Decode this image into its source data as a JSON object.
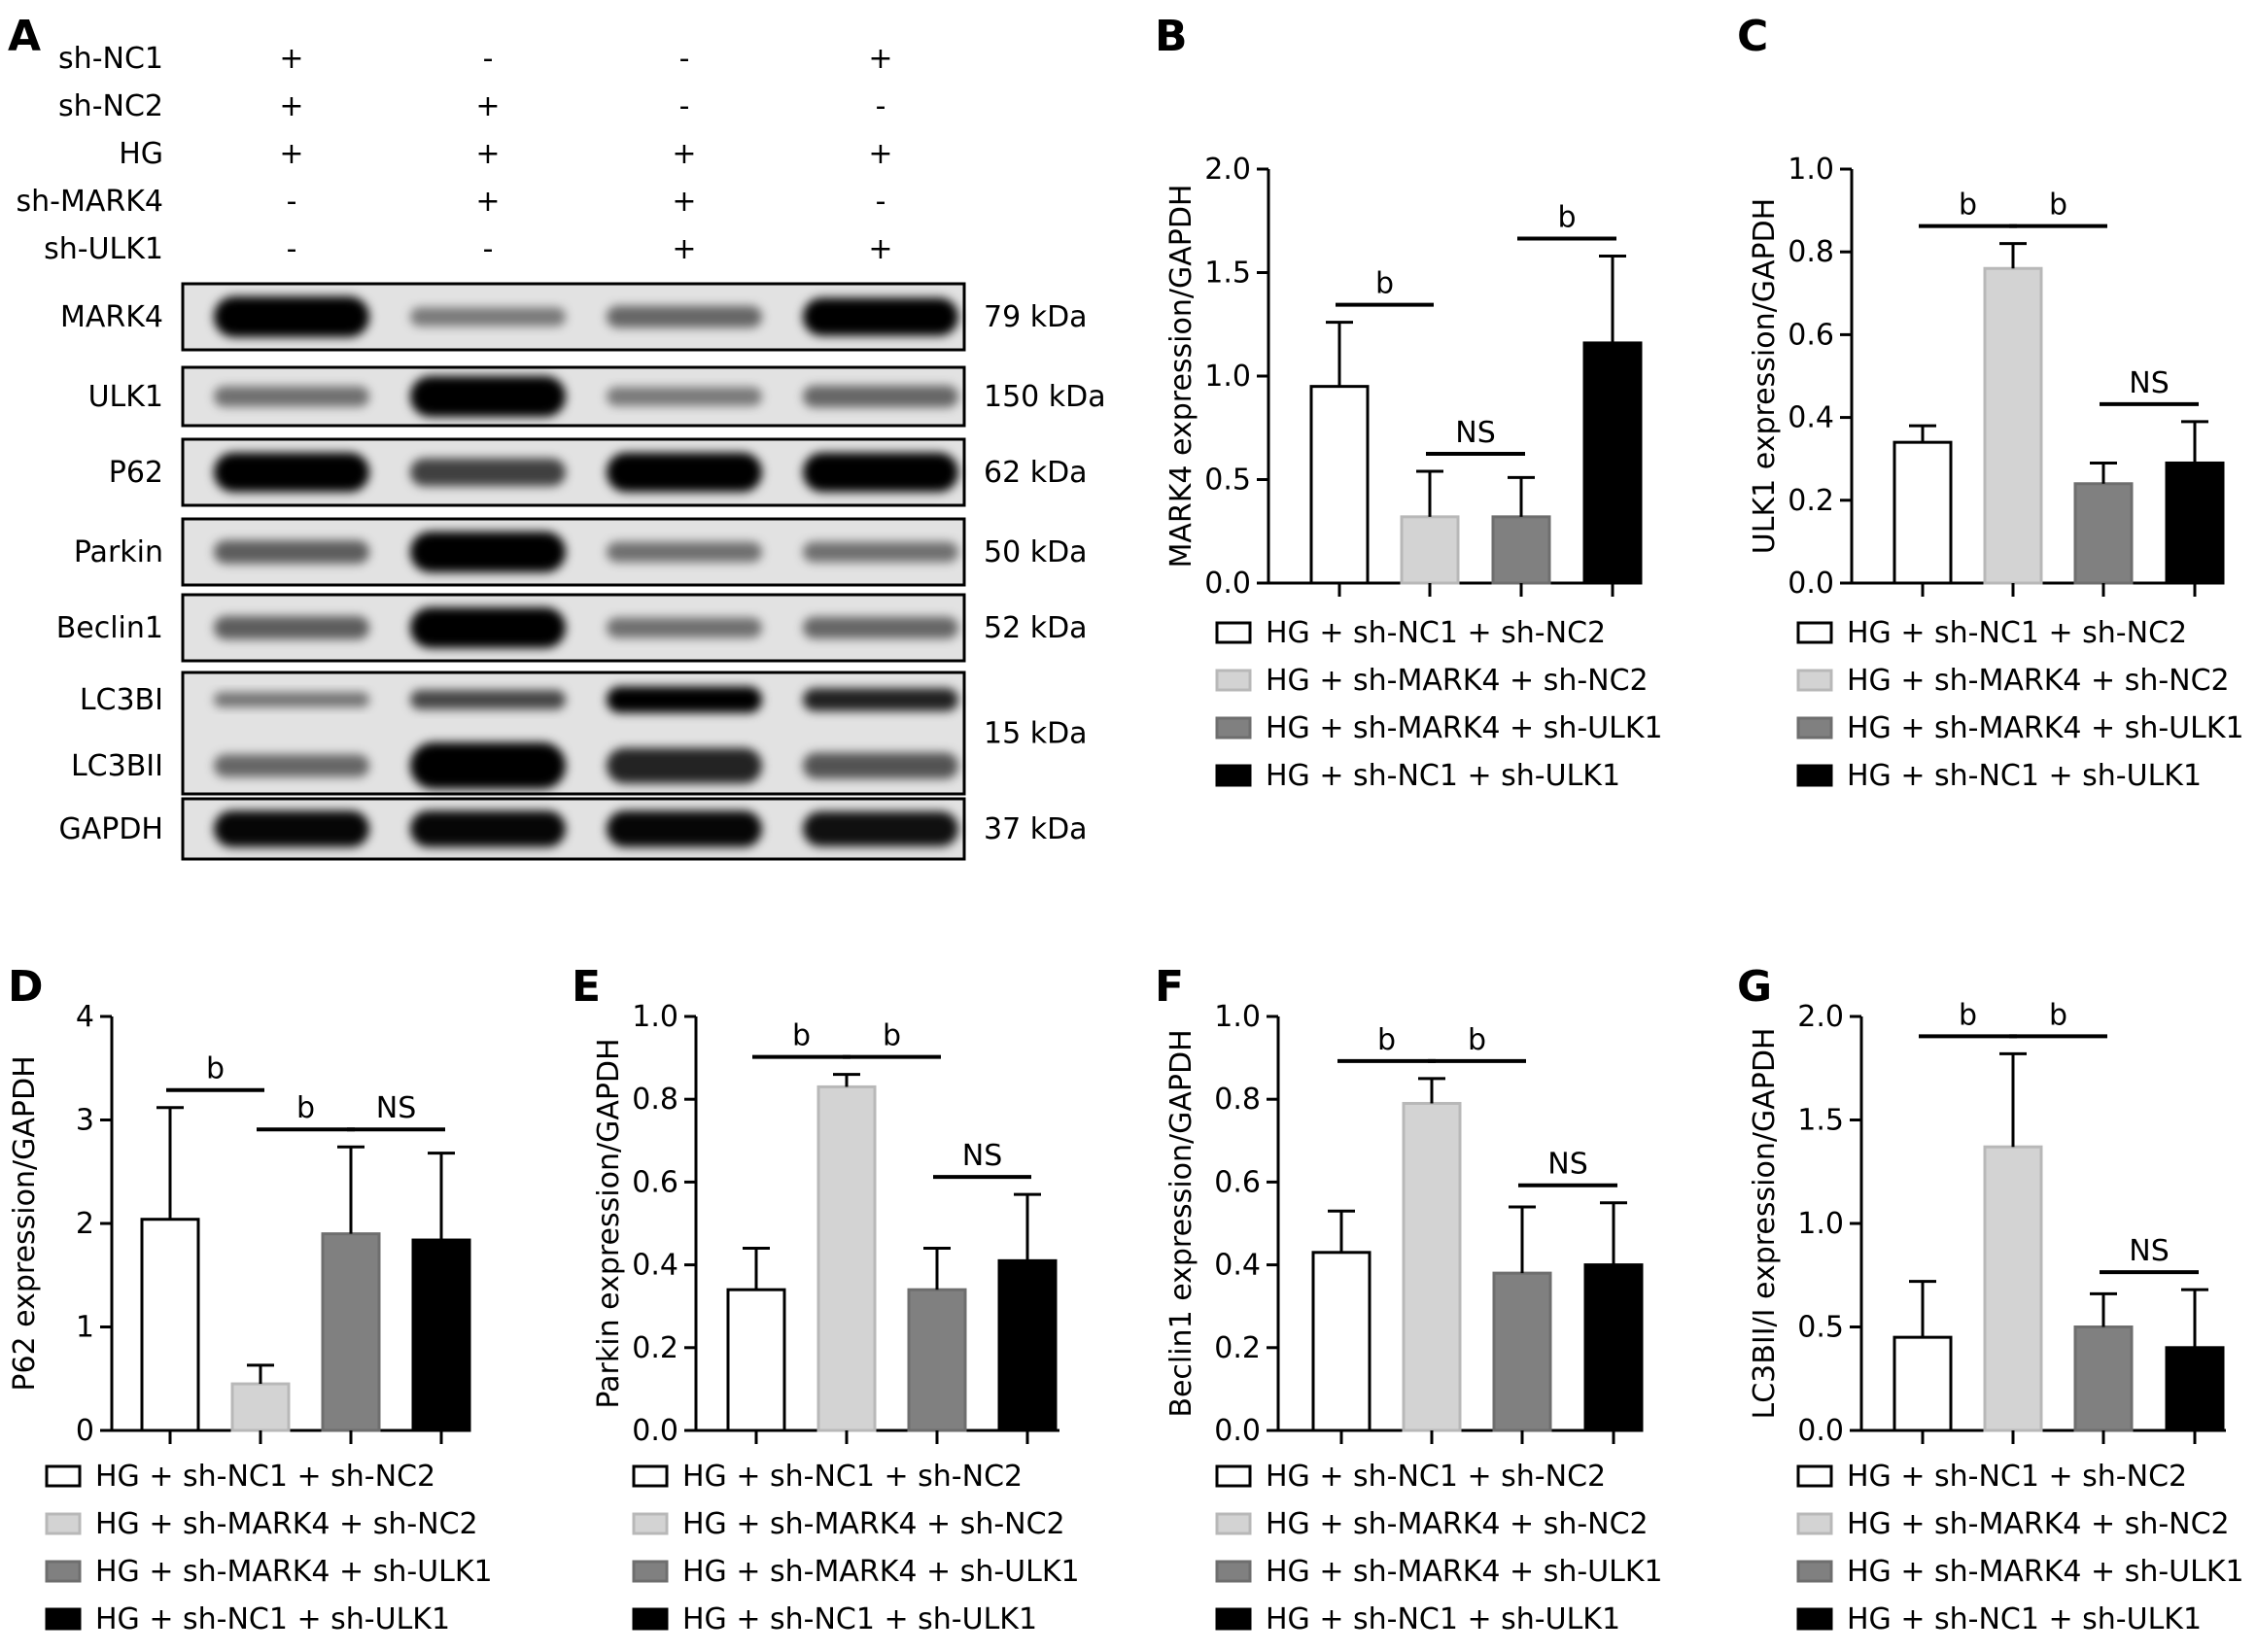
{
  "panel_a": {
    "letter": "A",
    "conditions": [
      {
        "label": "sh-NC1",
        "signs": [
          "+",
          "-",
          "-",
          "+"
        ]
      },
      {
        "label": "sh-NC2",
        "signs": [
          "+",
          "+",
          "-",
          "-"
        ]
      },
      {
        "label": "HG",
        "signs": [
          "+",
          "+",
          "+",
          "+"
        ]
      },
      {
        "label": "sh-MARK4",
        "signs": [
          "-",
          "+",
          "+",
          "-"
        ]
      },
      {
        "label": "sh-ULK1",
        "signs": [
          "-",
          "-",
          "+",
          "+"
        ]
      }
    ],
    "blots": [
      {
        "labels": [
          "MARK4"
        ],
        "kda": "79 kDa",
        "intensity": [
          1.0,
          0.25,
          0.35,
          0.9
        ]
      },
      {
        "labels": [
          "ULK1"
        ],
        "kda": "150 kDa",
        "intensity": [
          0.3,
          1.0,
          0.25,
          0.35
        ]
      },
      {
        "labels": [
          "P62"
        ],
        "kda": "62 kDa",
        "intensity": [
          0.95,
          0.55,
          0.95,
          0.95
        ]
      },
      {
        "labels": [
          "Parkin"
        ],
        "kda": "50 kDa",
        "intensity": [
          0.4,
          1.0,
          0.3,
          0.3
        ]
      },
      {
        "labels": [
          "Beclin1"
        ],
        "kda": "52 kDa",
        "intensity": [
          0.4,
          1.0,
          0.3,
          0.35
        ]
      },
      {
        "labels": [
          "LC3BI",
          "LC3BII"
        ],
        "kda": "15 kDa",
        "intensity": [
          0.35,
          1.0,
          0.7,
          0.45
        ]
      },
      {
        "labels": [
          "GAPDH"
        ],
        "kda": "37 kDa",
        "intensity": [
          0.85,
          0.85,
          0.85,
          0.8
        ]
      }
    ]
  },
  "legend_items": [
    "HG + sh-NC1 + sh-NC2",
    "HG + sh-MARK4 + sh-NC2",
    "HG + sh-MARK4 + sh-ULK1",
    "HG + sh-NC1 + sh-ULK1"
  ],
  "colors": {
    "bar_fills": [
      "#ffffff",
      "#d3d3d3",
      "#808080",
      "#000000"
    ],
    "bar_strokes": [
      "#000000",
      "#b8b8b8",
      "#6e6e6e",
      "#000000"
    ]
  },
  "chart_data": [
    {
      "letter": "B",
      "type": "bar",
      "ylabel": "MARK4 expression/GAPDH",
      "ylim": [
        0,
        2.0
      ],
      "yticks": [
        "0.0",
        "0.5",
        "1.0",
        "1.5",
        "2.0"
      ],
      "values": [
        0.95,
        0.32,
        0.32,
        1.16
      ],
      "errors": [
        0.31,
        0.22,
        0.19,
        0.42
      ],
      "annotations": [
        {
          "from": 0,
          "to": 1,
          "text": "b"
        },
        {
          "from": 1,
          "to": 2,
          "text": "NS"
        },
        {
          "from": 2,
          "to": 3,
          "text": "b"
        }
      ]
    },
    {
      "letter": "C",
      "type": "bar",
      "ylabel": "ULK1 expression/GAPDH",
      "ylim": [
        0,
        1.0
      ],
      "yticks": [
        "0.0",
        "0.2",
        "0.4",
        "0.6",
        "0.8",
        "1.0"
      ],
      "values": [
        0.34,
        0.76,
        0.24,
        0.29
      ],
      "errors": [
        0.04,
        0.06,
        0.05,
        0.1
      ],
      "annotations": [
        {
          "from": 0,
          "to": 1,
          "text": "b"
        },
        {
          "from": 1,
          "to": 2,
          "text": "b"
        },
        {
          "from": 2,
          "to": 3,
          "text": "NS"
        }
      ]
    },
    {
      "letter": "D",
      "type": "bar",
      "ylabel": "P62 expression/GAPDH",
      "ylim": [
        0,
        4
      ],
      "yticks": [
        "0",
        "1",
        "2",
        "3",
        "4"
      ],
      "values": [
        2.04,
        0.45,
        1.9,
        1.84
      ],
      "errors": [
        1.08,
        0.18,
        0.84,
        0.84
      ],
      "annotations": [
        {
          "from": 0,
          "to": 1,
          "text": "b"
        },
        {
          "from": 1,
          "to": 2,
          "text": "b"
        },
        {
          "from": 2,
          "to": 3,
          "text": "NS"
        }
      ]
    },
    {
      "letter": "E",
      "type": "bar",
      "ylabel": "Parkin expression/GAPDH",
      "ylim": [
        0,
        1.0
      ],
      "yticks": [
        "0.0",
        "0.2",
        "0.4",
        "0.6",
        "0.8",
        "1.0"
      ],
      "values": [
        0.34,
        0.83,
        0.34,
        0.41
      ],
      "errors": [
        0.1,
        0.03,
        0.1,
        0.16
      ],
      "annotations": [
        {
          "from": 0,
          "to": 1,
          "text": "b"
        },
        {
          "from": 1,
          "to": 2,
          "text": "b"
        },
        {
          "from": 2,
          "to": 3,
          "text": "NS"
        }
      ]
    },
    {
      "letter": "F",
      "type": "bar",
      "ylabel": "Beclin1 expression/GAPDH",
      "ylim": [
        0,
        1.0
      ],
      "yticks": [
        "0.0",
        "0.2",
        "0.4",
        "0.6",
        "0.8",
        "1.0"
      ],
      "values": [
        0.43,
        0.79,
        0.38,
        0.4
      ],
      "errors": [
        0.1,
        0.06,
        0.16,
        0.15
      ],
      "annotations": [
        {
          "from": 0,
          "to": 1,
          "text": "b"
        },
        {
          "from": 1,
          "to": 2,
          "text": "b"
        },
        {
          "from": 2,
          "to": 3,
          "text": "NS"
        }
      ]
    },
    {
      "letter": "G",
      "type": "bar",
      "ylabel": "LC3BII/I expression/GAPDH",
      "ylim": [
        0,
        2.0
      ],
      "yticks": [
        "0.0",
        "0.5",
        "1.0",
        "1.5",
        "2.0"
      ],
      "values": [
        0.45,
        1.37,
        0.5,
        0.4
      ],
      "errors": [
        0.27,
        0.45,
        0.16,
        0.28
      ],
      "annotations": [
        {
          "from": 0,
          "to": 1,
          "text": "b"
        },
        {
          "from": 1,
          "to": 2,
          "text": "b"
        },
        {
          "from": 2,
          "to": 3,
          "text": "NS"
        }
      ]
    }
  ]
}
